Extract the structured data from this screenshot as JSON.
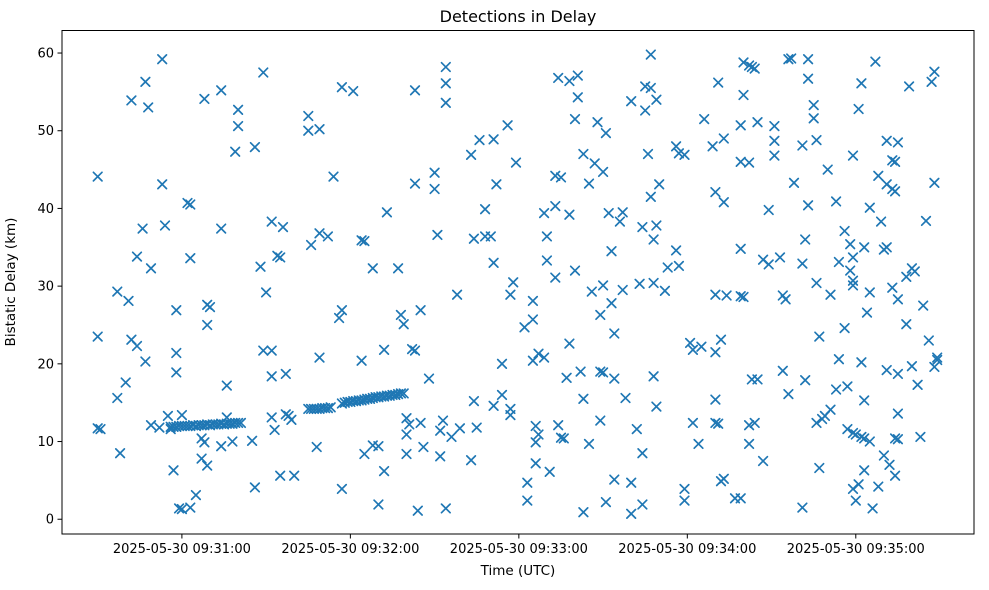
{
  "chart_data": {
    "type": "scatter",
    "title": "Detections in Delay",
    "xlabel": "Time (UTC)",
    "ylabel": "Bistatic Delay (km)",
    "marker": "x",
    "marker_color": "#1f77b4",
    "grid": false,
    "legend": "none",
    "x_base_time": "2025-05-30 09:30:00",
    "x_unit": "seconds after 2025-05-30 09:30:00 UTC",
    "x_tick_labels": [
      "2025-05-30 09:31:00",
      "2025-05-30 09:32:00",
      "2025-05-30 09:33:00",
      "2025-05-30 09:34:00",
      "2025-05-30 09:35:00"
    ],
    "x_tick_seconds": [
      60,
      120,
      180,
      240,
      300
    ],
    "xlim_seconds": [
      17.3,
      342.1
    ],
    "y_ticks": [
      0,
      10,
      20,
      30,
      40,
      50,
      60
    ],
    "ylim": [
      -1.9,
      62.9
    ],
    "points": [
      [
        53,
        59.2
      ],
      [
        47,
        56.3
      ],
      [
        42,
        53.9
      ],
      [
        48,
        53.0
      ],
      [
        68,
        54.1
      ],
      [
        74,
        55.2
      ],
      [
        89,
        57.5
      ],
      [
        80,
        52.7
      ],
      [
        80,
        50.6
      ],
      [
        79,
        47.3
      ],
      [
        86,
        47.9
      ],
      [
        30,
        44.1
      ],
      [
        53,
        43.1
      ],
      [
        154,
        58.2
      ],
      [
        154,
        56.1
      ],
      [
        143,
        55.2
      ],
      [
        154,
        53.6
      ],
      [
        117,
        55.6
      ],
      [
        121,
        55.1
      ],
      [
        105,
        51.9
      ],
      [
        105,
        50.0
      ],
      [
        109,
        50.2
      ],
      [
        176,
        50.7
      ],
      [
        166,
        48.8
      ],
      [
        171,
        48.9
      ],
      [
        163,
        46.9
      ],
      [
        179,
        45.9
      ],
      [
        114,
        44.1
      ],
      [
        150,
        44.6
      ],
      [
        143,
        43.2
      ],
      [
        150,
        42.5
      ],
      [
        172,
        43.1
      ],
      [
        227,
        59.8
      ],
      [
        260,
        58.8
      ],
      [
        262,
        58.4
      ],
      [
        194,
        56.8
      ],
      [
        198,
        56.4
      ],
      [
        201,
        57.1
      ],
      [
        251,
        56.2
      ],
      [
        201,
        54.3
      ],
      [
        260,
        54.6
      ],
      [
        225,
        55.7
      ],
      [
        227,
        55.5
      ],
      [
        229,
        54.0
      ],
      [
        220,
        53.8
      ],
      [
        225,
        52.6
      ],
      [
        200,
        51.5
      ],
      [
        208,
        51.1
      ],
      [
        211,
        49.7
      ],
      [
        246,
        51.5
      ],
      [
        259,
        50.7
      ],
      [
        253,
        49.0
      ],
      [
        249,
        48.0
      ],
      [
        236,
        48.0
      ],
      [
        237,
        47.1
      ],
      [
        239,
        46.9
      ],
      [
        226,
        47.0
      ],
      [
        203,
        47.0
      ],
      [
        207,
        45.8
      ],
      [
        210,
        44.7
      ],
      [
        193,
        44.2
      ],
      [
        195,
        44.0
      ],
      [
        205,
        43.2
      ],
      [
        230,
        43.1
      ],
      [
        227,
        41.5
      ],
      [
        250,
        42.1
      ],
      [
        259,
        46.0
      ],
      [
        262,
        45.9
      ],
      [
        263,
        58.2
      ],
      [
        264,
        58.0
      ],
      [
        276,
        59.2
      ],
      [
        277,
        59.3
      ],
      [
        283,
        59.2
      ],
      [
        307,
        58.9
      ],
      [
        283,
        56.7
      ],
      [
        328,
        57.6
      ],
      [
        327,
        56.3
      ],
      [
        302,
        56.1
      ],
      [
        319,
        55.7
      ],
      [
        285,
        53.3
      ],
      [
        301,
        52.8
      ],
      [
        285,
        51.6
      ],
      [
        265,
        51.1
      ],
      [
        271,
        50.6
      ],
      [
        271,
        48.7
      ],
      [
        281,
        48.1
      ],
      [
        286,
        48.8
      ],
      [
        311,
        48.7
      ],
      [
        315,
        48.5
      ],
      [
        271,
        46.8
      ],
      [
        299,
        46.8
      ],
      [
        313,
        46.2
      ],
      [
        314,
        46.0
      ],
      [
        290,
        45.0
      ],
      [
        308,
        44.2
      ],
      [
        311,
        43.1
      ],
      [
        313,
        42.5
      ],
      [
        314,
        42.2
      ],
      [
        328,
        43.3
      ],
      [
        278,
        43.3
      ],
      [
        62,
        40.7
      ],
      [
        63,
        40.5
      ],
      [
        46,
        37.4
      ],
      [
        54,
        37.8
      ],
      [
        74,
        37.4
      ],
      [
        92,
        38.3
      ],
      [
        96,
        37.6
      ],
      [
        44,
        33.8
      ],
      [
        49,
        32.3
      ],
      [
        63,
        33.6
      ],
      [
        88,
        32.5
      ],
      [
        94,
        33.9
      ],
      [
        95,
        33.7
      ],
      [
        37,
        29.3
      ],
      [
        41,
        28.1
      ],
      [
        90,
        29.2
      ],
      [
        58,
        26.9
      ],
      [
        69,
        27.6
      ],
      [
        70,
        27.3
      ],
      [
        69,
        25.0
      ],
      [
        30,
        23.5
      ],
      [
        42,
        23.1
      ],
      [
        44,
        22.3
      ],
      [
        58,
        21.4
      ],
      [
        47,
        20.3
      ],
      [
        89,
        21.7
      ],
      [
        92,
        21.7
      ],
      [
        133,
        39.5
      ],
      [
        168,
        39.9
      ],
      [
        109,
        36.8
      ],
      [
        112,
        36.4
      ],
      [
        106,
        35.3
      ],
      [
        124,
        35.9
      ],
      [
        125,
        35.8
      ],
      [
        151,
        36.6
      ],
      [
        164,
        36.1
      ],
      [
        168,
        36.4
      ],
      [
        170,
        36.4
      ],
      [
        128,
        32.3
      ],
      [
        137,
        32.3
      ],
      [
        171,
        33.0
      ],
      [
        178,
        30.5
      ],
      [
        177,
        28.9
      ],
      [
        158,
        28.9
      ],
      [
        117,
        26.9
      ],
      [
        116,
        25.9
      ],
      [
        138,
        26.3
      ],
      [
        145,
        26.9
      ],
      [
        139,
        25.1
      ],
      [
        132,
        21.8
      ],
      [
        142,
        21.9
      ],
      [
        143,
        21.7
      ],
      [
        109,
        20.8
      ],
      [
        124,
        20.4
      ],
      [
        253,
        40.8
      ],
      [
        193,
        40.3
      ],
      [
        189,
        39.4
      ],
      [
        198,
        39.2
      ],
      [
        212,
        39.4
      ],
      [
        217,
        39.5
      ],
      [
        216,
        38.3
      ],
      [
        190,
        36.4
      ],
      [
        224,
        37.6
      ],
      [
        229,
        37.8
      ],
      [
        228,
        36.0
      ],
      [
        213,
        34.5
      ],
      [
        259,
        34.8
      ],
      [
        236,
        34.6
      ],
      [
        190,
        33.3
      ],
      [
        233,
        32.4
      ],
      [
        237,
        32.6
      ],
      [
        200,
        32.0
      ],
      [
        193,
        31.1
      ],
      [
        210,
        30.1
      ],
      [
        206,
        29.3
      ],
      [
        217,
        29.5
      ],
      [
        223,
        30.3
      ],
      [
        228,
        30.4
      ],
      [
        232,
        29.4
      ],
      [
        250,
        28.9
      ],
      [
        254,
        28.8
      ],
      [
        259,
        28.7
      ],
      [
        260,
        28.6
      ],
      [
        185,
        28.1
      ],
      [
        213,
        27.8
      ],
      [
        209,
        26.3
      ],
      [
        185,
        25.7
      ],
      [
        182,
        24.7
      ],
      [
        214,
        23.9
      ],
      [
        198,
        22.6
      ],
      [
        241,
        22.7
      ],
      [
        242,
        21.8
      ],
      [
        245,
        22.2
      ],
      [
        252,
        23.1
      ],
      [
        250,
        21.5
      ],
      [
        187,
        21.3
      ],
      [
        189,
        20.8
      ],
      [
        185,
        20.4
      ],
      [
        269,
        39.8
      ],
      [
        283,
        40.4
      ],
      [
        293,
        40.9
      ],
      [
        305,
        40.1
      ],
      [
        309,
        38.3
      ],
      [
        325,
        38.4
      ],
      [
        296,
        37.1
      ],
      [
        282,
        36.0
      ],
      [
        298,
        35.4
      ],
      [
        303,
        35.0
      ],
      [
        310,
        34.7
      ],
      [
        311,
        35.0
      ],
      [
        267,
        33.4
      ],
      [
        269,
        32.8
      ],
      [
        273,
        33.7
      ],
      [
        281,
        32.9
      ],
      [
        294,
        33.1
      ],
      [
        299,
        33.7
      ],
      [
        320,
        32.3
      ],
      [
        321,
        31.9
      ],
      [
        318,
        31.2
      ],
      [
        298,
        32.0
      ],
      [
        299,
        30.7
      ],
      [
        286,
        30.4
      ],
      [
        299,
        30.1
      ],
      [
        291,
        28.9
      ],
      [
        305,
        29.2
      ],
      [
        313,
        29.8
      ],
      [
        315,
        28.3
      ],
      [
        274,
        28.8
      ],
      [
        275,
        28.3
      ],
      [
        324,
        27.5
      ],
      [
        304,
        26.6
      ],
      [
        318,
        25.1
      ],
      [
        296,
        24.6
      ],
      [
        287,
        23.5
      ],
      [
        326,
        23.0
      ],
      [
        294,
        20.6
      ],
      [
        302,
        20.2
      ],
      [
        329,
        20.8
      ],
      [
        329,
        20.5
      ],
      [
        58,
        18.9
      ],
      [
        40,
        17.6
      ],
      [
        37,
        15.6
      ],
      [
        92,
        18.4
      ],
      [
        97,
        18.7
      ],
      [
        76,
        17.2
      ],
      [
        55,
        13.3
      ],
      [
        60,
        13.4
      ],
      [
        76,
        13.1
      ],
      [
        30,
        11.7
      ],
      [
        31,
        11.6
      ],
      [
        49,
        12.1
      ],
      [
        52,
        11.8
      ],
      [
        56,
        11.6
      ],
      [
        67,
        10.4
      ],
      [
        68,
        9.9
      ],
      [
        74,
        9.4
      ],
      [
        78,
        10.0
      ],
      [
        85,
        10.1
      ],
      [
        38,
        8.5
      ],
      [
        67,
        7.8
      ],
      [
        69,
        6.9
      ],
      [
        57,
        6.3
      ],
      [
        95,
        5.6
      ],
      [
        86,
        4.1
      ],
      [
        59,
        1.4
      ],
      [
        60,
        1.3
      ],
      [
        63,
        1.5
      ],
      [
        65,
        3.1
      ],
      [
        56,
        11.9
      ],
      [
        57,
        11.9
      ],
      [
        58,
        11.9
      ],
      [
        59,
        12.0
      ],
      [
        60,
        12.0
      ],
      [
        61,
        12.0
      ],
      [
        62,
        12.0
      ],
      [
        63,
        12.0
      ],
      [
        64,
        12.1
      ],
      [
        65,
        12.0
      ],
      [
        66,
        12.1
      ],
      [
        67,
        12.1
      ],
      [
        68,
        12.1
      ],
      [
        69,
        12.2
      ],
      [
        70,
        12.1
      ],
      [
        71,
        12.2
      ],
      [
        72,
        12.2
      ],
      [
        73,
        12.2
      ],
      [
        74,
        12.3
      ],
      [
        75,
        12.2
      ],
      [
        76,
        12.3
      ],
      [
        77,
        12.3
      ],
      [
        78,
        12.3
      ],
      [
        79,
        12.4
      ],
      [
        80,
        12.4
      ],
      [
        81,
        12.4
      ],
      [
        92,
        13.1
      ],
      [
        97,
        13.5
      ],
      [
        98,
        13.3
      ],
      [
        99,
        12.8
      ],
      [
        93,
        11.5
      ],
      [
        105,
        14.2
      ],
      [
        106,
        14.2
      ],
      [
        107,
        14.2
      ],
      [
        108,
        14.2
      ],
      [
        109,
        14.2
      ],
      [
        110,
        14.3
      ],
      [
        111,
        14.3
      ],
      [
        112,
        14.3
      ],
      [
        113,
        14.4
      ],
      [
        117,
        14.9
      ],
      [
        118,
        15.0
      ],
      [
        119,
        15.1
      ],
      [
        120,
        15.1
      ],
      [
        121,
        15.2
      ],
      [
        122,
        15.2
      ],
      [
        123,
        15.3
      ],
      [
        124,
        15.3
      ],
      [
        125,
        15.4
      ],
      [
        126,
        15.5
      ],
      [
        127,
        15.5
      ],
      [
        128,
        15.6
      ],
      [
        129,
        15.7
      ],
      [
        130,
        15.7
      ],
      [
        131,
        15.8
      ],
      [
        132,
        15.8
      ],
      [
        133,
        15.9
      ],
      [
        134,
        15.9
      ],
      [
        135,
        16.0
      ],
      [
        136,
        16.0
      ],
      [
        137,
        16.1
      ],
      [
        138,
        16.2
      ],
      [
        139,
        16.2
      ],
      [
        148,
        18.1
      ],
      [
        174,
        20.0
      ],
      [
        164,
        15.2
      ],
      [
        171,
        14.6
      ],
      [
        174,
        16.0
      ],
      [
        177,
        14.2
      ],
      [
        177,
        13.4
      ],
      [
        140,
        13.0
      ],
      [
        141,
        12.2
      ],
      [
        140,
        10.9
      ],
      [
        145,
        12.4
      ],
      [
        153,
        12.7
      ],
      [
        152,
        11.4
      ],
      [
        156,
        10.6
      ],
      [
        159,
        11.7
      ],
      [
        165,
        11.8
      ],
      [
        108,
        9.3
      ],
      [
        125,
        8.4
      ],
      [
        128,
        9.5
      ],
      [
        130,
        9.4
      ],
      [
        140,
        8.4
      ],
      [
        146,
        9.3
      ],
      [
        152,
        8.1
      ],
      [
        163,
        7.6
      ],
      [
        132,
        6.2
      ],
      [
        100,
        5.6
      ],
      [
        117,
        3.9
      ],
      [
        130,
        1.9
      ],
      [
        144,
        1.1
      ],
      [
        154,
        1.4
      ],
      [
        197,
        18.2
      ],
      [
        202,
        19.0
      ],
      [
        209,
        19.0
      ],
      [
        210,
        18.9
      ],
      [
        214,
        18.1
      ],
      [
        228,
        18.4
      ],
      [
        203,
        15.5
      ],
      [
        218,
        15.6
      ],
      [
        229,
        14.5
      ],
      [
        250,
        15.4
      ],
      [
        209,
        12.7
      ],
      [
        186,
        12.0
      ],
      [
        194,
        12.1
      ],
      [
        242,
        12.4
      ],
      [
        250,
        12.4
      ],
      [
        251,
        12.3
      ],
      [
        187,
        10.9
      ],
      [
        186,
        9.9
      ],
      [
        195,
        10.5
      ],
      [
        196,
        10.4
      ],
      [
        205,
        9.7
      ],
      [
        222,
        11.6
      ],
      [
        244,
        9.7
      ],
      [
        224,
        8.5
      ],
      [
        186,
        7.2
      ],
      [
        191,
        6.1
      ],
      [
        183,
        4.7
      ],
      [
        214,
        5.1
      ],
      [
        220,
        4.7
      ],
      [
        239,
        3.9
      ],
      [
        239,
        2.4
      ],
      [
        252,
        4.9
      ],
      [
        253,
        5.2
      ],
      [
        257,
        2.7
      ],
      [
        259,
        2.7
      ],
      [
        183,
        2.4
      ],
      [
        211,
        2.2
      ],
      [
        203,
        0.9
      ],
      [
        224,
        1.9
      ],
      [
        220,
        0.7
      ],
      [
        263,
        18.0
      ],
      [
        265,
        18.0
      ],
      [
        274,
        19.1
      ],
      [
        282,
        17.9
      ],
      [
        311,
        19.2
      ],
      [
        315,
        18.7
      ],
      [
        320,
        19.7
      ],
      [
        328,
        19.6
      ],
      [
        276,
        16.1
      ],
      [
        293,
        16.7
      ],
      [
        297,
        17.1
      ],
      [
        303,
        15.3
      ],
      [
        322,
        17.3
      ],
      [
        315,
        13.6
      ],
      [
        286,
        12.4
      ],
      [
        288,
        12.9
      ],
      [
        289,
        13.3
      ],
      [
        291,
        14.1
      ],
      [
        297,
        11.6
      ],
      [
        299,
        11.1
      ],
      [
        300,
        10.9
      ],
      [
        302,
        10.6
      ],
      [
        303,
        10.4
      ],
      [
        305,
        10.0
      ],
      [
        262,
        12.1
      ],
      [
        264,
        12.4
      ],
      [
        262,
        9.7
      ],
      [
        314,
        10.4
      ],
      [
        315,
        10.3
      ],
      [
        323,
        10.6
      ],
      [
        310,
        8.2
      ],
      [
        312,
        7.0
      ],
      [
        314,
        5.6
      ],
      [
        267,
        7.5
      ],
      [
        287,
        6.6
      ],
      [
        303,
        6.3
      ],
      [
        299,
        3.9
      ],
      [
        301,
        4.5
      ],
      [
        308,
        4.2
      ],
      [
        300,
        2.4
      ],
      [
        306,
        1.4
      ],
      [
        281,
        1.5
      ]
    ]
  }
}
